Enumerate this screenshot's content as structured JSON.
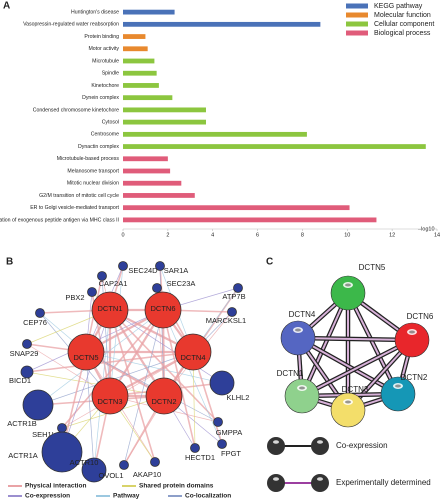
{
  "chart_data": {
    "type": "bar",
    "orientation": "horizontal",
    "panel_label": "A",
    "categories": [
      "Huntington's disease",
      "Vasopressin-regulated water reabsorption",
      "Protein binding",
      "Motor activity",
      "Microtubule",
      "Spindle",
      "Kinetochore",
      "Dynein complex",
      "Condensed chromosome kinetochore",
      "Cytosol",
      "Centrosome",
      "Dynactin complex",
      "Microtubule-based process",
      "Melanosome transport",
      "Mitotic nuclear division",
      "G2/M transition of mitotic cell cycle",
      "ER to Golgi vesicle-mediated transport",
      "Antigen processing and presentation of exogenous peptide antigen via MHC class II"
    ],
    "series": [
      {
        "name": "KEGG pathway",
        "color": "#4a72b8",
        "values": [
          2.3,
          8.8,
          null,
          null,
          null,
          null,
          null,
          null,
          null,
          null,
          null,
          null,
          null,
          null,
          null,
          null,
          null,
          null
        ]
      },
      {
        "name": "Molecular function",
        "color": "#e8892e",
        "values": [
          null,
          null,
          1.0,
          1.1,
          null,
          null,
          null,
          null,
          null,
          null,
          null,
          null,
          null,
          null,
          null,
          null,
          null,
          null
        ]
      },
      {
        "name": "Cellular component",
        "color": "#8cc63f",
        "values": [
          null,
          null,
          null,
          null,
          1.4,
          1.5,
          1.6,
          2.2,
          3.7,
          3.7,
          8.2,
          13.5,
          null,
          null,
          null,
          null,
          null,
          null
        ]
      },
      {
        "name": "Biological process",
        "color": "#e05c7a",
        "values": [
          null,
          null,
          null,
          null,
          null,
          null,
          null,
          null,
          null,
          null,
          null,
          null,
          2.0,
          2.1,
          2.6,
          3.2,
          10.1,
          11.3
        ]
      }
    ],
    "xlim": [
      0,
      14
    ],
    "xticks": [
      0,
      2,
      4,
      6,
      8,
      10,
      12,
      14
    ],
    "xlabel": "–log10",
    "legend_position": "upper right"
  },
  "network_b": {
    "panel_label": "B",
    "nodes": [
      "DCTN1",
      "DCTN6",
      "DCTN5",
      "DCTN4",
      "DCTN3",
      "DCTN2",
      "SEC24D",
      "SAR1A",
      "CAP2A1",
      "SEC23A",
      "PBX2",
      "ATP7B",
      "CEP76",
      "MARCKSL1",
      "SNAP29",
      "BICD1",
      "KLHL2",
      "ACTR1B",
      "GMPPA",
      "SEH1L",
      "ACTR1A",
      "FPGT",
      "ACTR10",
      "OVOL1",
      "AKAP10",
      "HECTD1"
    ],
    "legend": [
      "Physical interaction",
      "Shared protein domains",
      "Co-expression",
      "Pathway",
      "Co-localization"
    ]
  },
  "network_c": {
    "panel_label": "C",
    "nodes": [
      "DCTN5",
      "DCTN4",
      "DCTN6",
      "DCTN1",
      "DCTN2",
      "DCTN3"
    ],
    "legend": [
      "Co-expression",
      "Experimentally determined"
    ]
  }
}
